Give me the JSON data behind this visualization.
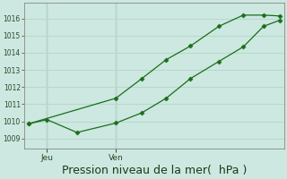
{
  "bg_color": "#cce8e0",
  "grid_color": "#b8d8cc",
  "line_color": "#1a6e1a",
  "xlabel": "Pression niveau de la mer(  hPa )",
  "xlabel_fontsize": 9,
  "yticks": [
    1009,
    1010,
    1011,
    1012,
    1013,
    1014,
    1015,
    1016
  ],
  "ylim": [
    1008.4,
    1016.9
  ],
  "xlim": [
    0,
    320
  ],
  "vline_x": [
    28,
    113
  ],
  "vline_labels": [
    "Jeu",
    "Ven"
  ],
  "series1_x": [
    5,
    28,
    65,
    113,
    145,
    175,
    205,
    240,
    270,
    295,
    315
  ],
  "series1_y": [
    1009.85,
    1010.1,
    1009.35,
    1009.9,
    1010.5,
    1011.35,
    1012.5,
    1013.5,
    1014.35,
    1015.55,
    1015.9
  ],
  "series2_x": [
    5,
    113,
    145,
    175,
    205,
    240,
    270,
    295,
    315
  ],
  "series2_y": [
    1009.85,
    1011.35,
    1012.5,
    1013.6,
    1014.4,
    1015.55,
    1016.2,
    1016.2,
    1016.15
  ],
  "marker": "D",
  "markersize": 2.5
}
